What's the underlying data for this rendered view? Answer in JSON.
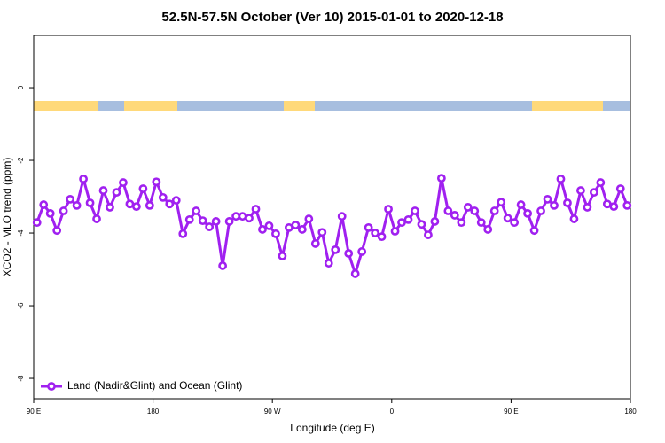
{
  "chart_data": {
    "type": "line",
    "title": "52.5N-57.5N October (Ver 10)   2015-01-01 to 2020-12-18",
    "xlabel": "Longitude (deg E)",
    "ylabel": "XCO2 - MLO trend (ppm)",
    "xlim": [
      90,
      540
    ],
    "ylim": [
      -8.56,
      1.44
    ],
    "xticks": [
      {
        "value": 90,
        "label": "90 E"
      },
      180,
      {
        "value": 270,
        "label": "90 W"
      },
      {
        "value": 360,
        "label": "0"
      },
      {
        "value": 450,
        "label": "90 E"
      },
      {
        "value": 540,
        "label": "180"
      }
    ],
    "yticks": [
      0,
      -2,
      -4,
      -6,
      -8
    ],
    "legend": "bottomleft",
    "x": [
      92.5,
      97.5,
      102.5,
      107.5,
      112.5,
      117.5,
      122.5,
      127.5,
      132.5,
      137.5,
      142.5,
      147.5,
      152.5,
      157.5,
      162.5,
      167.5,
      172.5,
      177.5,
      182.5,
      187.5,
      192.5,
      197.5,
      202.5,
      207.5,
      212.5,
      217.5,
      222.5,
      227.5,
      232.5,
      237.5,
      242.5,
      247.5,
      252.5,
      257.5,
      262.5,
      267.5,
      272.5,
      277.5,
      282.5,
      287.5,
      292.5,
      297.5,
      302.5,
      307.5,
      312.5,
      317.5,
      322.5,
      327.5,
      332.5,
      337.5,
      342.5,
      347.5,
      352.5,
      357.5,
      362.5,
      367.5,
      372.5,
      377.5,
      382.5,
      387.5,
      392.5,
      397.5,
      402.5,
      407.5,
      412.5,
      417.5,
      422.5,
      427.5,
      432.5,
      437.5,
      442.5,
      447.5,
      452.5,
      457.5,
      462.5,
      467.5,
      472.5,
      477.5,
      482.5,
      487.5,
      492.5,
      497.5,
      502.5,
      507.5,
      512.5,
      517.5,
      522.5,
      527.5,
      532.5,
      537.5
    ],
    "series": [
      {
        "name": "Land (Nadir&Glint) and Ocean (Glint)",
        "color": "#a020f0",
        "values": [
          -3.71,
          -3.22,
          -3.46,
          -3.93,
          -3.39,
          -3.07,
          -3.24,
          -2.51,
          -3.17,
          -3.61,
          -2.83,
          -3.29,
          -2.88,
          -2.61,
          -3.2,
          -3.27,
          -2.78,
          -3.24,
          -2.59,
          -3.02,
          -3.2,
          -3.1,
          -4.02,
          -3.63,
          -3.39,
          -3.66,
          -3.83,
          -3.68,
          -4.9,
          -3.68,
          -3.54,
          -3.54,
          -3.59,
          -3.34,
          -3.9,
          -3.8,
          -4.02,
          -4.63,
          -3.85,
          -3.78,
          -3.9,
          -3.61,
          -4.29,
          -3.98,
          -4.83,
          -4.46,
          -3.54,
          -4.56,
          -5.12,
          -4.51,
          -3.85,
          -4,
          -4.1,
          -3.34,
          -3.95,
          -3.71,
          -3.63,
          -3.39,
          -3.76,
          -4.05,
          -3.68,
          -2.49,
          -3.39,
          -3.51,
          -3.71,
          -3.29,
          -3.39,
          -3.71,
          -3.9,
          -3.39,
          -3.15,
          -3.59,
          -3.71,
          -3.22,
          -3.46,
          -3.93,
          -3.39,
          -3.07,
          -3.24,
          -2.51,
          -3.17,
          -3.61,
          -2.83,
          -3.29,
          -2.88,
          -2.61,
          -3.2,
          -3.27,
          -2.78,
          -3.24
        ]
      }
    ]
  }
}
